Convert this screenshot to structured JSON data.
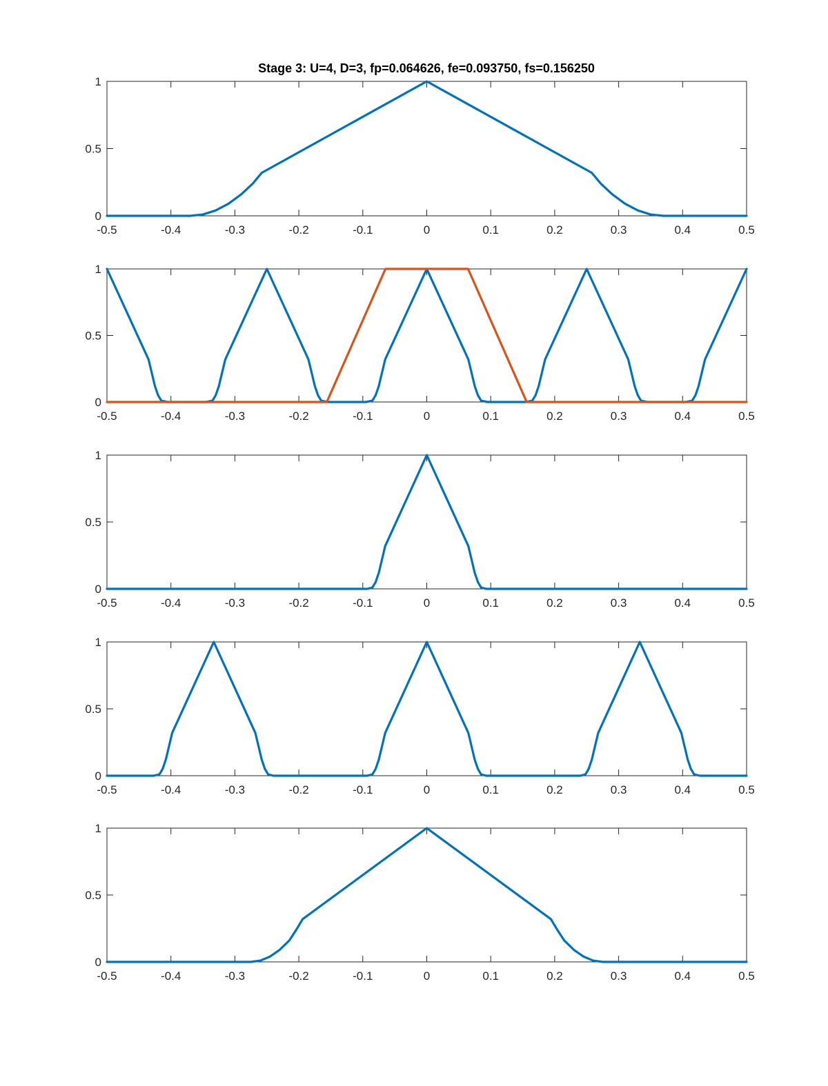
{
  "figure_title": "Stage 3: U=4, D=3, fp=0.064626, fe=0.093750, fs=0.156250",
  "colors": {
    "blue": "#0072BD",
    "orange": "#D95319",
    "axis": "#262626"
  },
  "chart_data": [
    {
      "type": "line",
      "xlim": [
        -0.5,
        0.5
      ],
      "ylim": [
        0,
        1
      ],
      "xticks": [
        -0.5,
        -0.4,
        -0.3,
        -0.2,
        -0.1,
        0,
        0.1,
        0.2,
        0.3,
        0.4,
        0.5
      ],
      "xtick_labels": [
        "-0.5",
        "-0.4",
        "-0.3",
        "-0.2",
        "-0.1",
        "0",
        "0.1",
        "0.2",
        "0.3",
        "0.4",
        "0.5"
      ],
      "yticks": [
        0,
        0.5,
        1
      ],
      "ytick_labels": [
        "0",
        "0.5",
        "1"
      ],
      "grid": false,
      "series": [
        {
          "color": "blue",
          "x": [
            -0.5,
            -0.37,
            -0.35,
            -0.33,
            -0.31,
            -0.29,
            -0.272,
            -0.258,
            0,
            0.258,
            0.272,
            0.29,
            0.31,
            0.33,
            0.35,
            0.37,
            0.5
          ],
          "y": [
            0,
            0,
            0.01,
            0.04,
            0.09,
            0.16,
            0.24,
            0.32,
            1,
            0.32,
            0.24,
            0.16,
            0.09,
            0.04,
            0.01,
            0,
            0
          ]
        }
      ]
    },
    {
      "type": "line",
      "xlim": [
        -0.5,
        0.5
      ],
      "ylim": [
        0,
        1
      ],
      "xticks": [
        -0.5,
        -0.4,
        -0.3,
        -0.2,
        -0.1,
        0,
        0.1,
        0.2,
        0.3,
        0.4,
        0.5
      ],
      "xtick_labels": [
        "-0.5",
        "-0.4",
        "-0.3",
        "-0.2",
        "-0.1",
        "0",
        "0.1",
        "0.2",
        "0.3",
        "0.4",
        "0.5"
      ],
      "yticks": [
        0,
        0.5,
        1
      ],
      "ytick_labels": [
        "0",
        "0.5",
        "1"
      ],
      "grid": false,
      "series": [
        {
          "color": "blue",
          "x": [
            -0.5,
            -0.435,
            -0.43,
            -0.425,
            -0.42,
            -0.415,
            -0.405,
            -0.345,
            -0.335,
            -0.33,
            -0.325,
            -0.32,
            -0.315,
            -0.25,
            -0.185,
            -0.18,
            -0.175,
            -0.17,
            -0.165,
            -0.155,
            -0.095,
            -0.085,
            -0.08,
            -0.075,
            -0.07,
            -0.065,
            0,
            0.065,
            0.07,
            0.075,
            0.08,
            0.085,
            0.095,
            0.155,
            0.165,
            0.17,
            0.175,
            0.18,
            0.185,
            0.25,
            0.315,
            0.32,
            0.325,
            0.33,
            0.335,
            0.345,
            0.405,
            0.415,
            0.42,
            0.425,
            0.43,
            0.435,
            0.5
          ],
          "y": [
            1,
            0.32,
            0.22,
            0.12,
            0.05,
            0.01,
            0,
            0,
            0.01,
            0.05,
            0.12,
            0.22,
            0.32,
            1,
            0.32,
            0.22,
            0.12,
            0.05,
            0.01,
            0,
            0,
            0.01,
            0.05,
            0.12,
            0.22,
            0.32,
            1,
            0.32,
            0.22,
            0.12,
            0.05,
            0.01,
            0,
            0,
            0.01,
            0.05,
            0.12,
            0.22,
            0.32,
            1,
            0.32,
            0.22,
            0.12,
            0.05,
            0.01,
            0,
            0,
            0.01,
            0.05,
            0.12,
            0.22,
            0.32,
            1
          ]
        },
        {
          "color": "orange",
          "x": [
            -0.5,
            -0.15625,
            -0.064626,
            0.064626,
            0.15625,
            0.5
          ],
          "y": [
            0,
            0,
            1,
            1,
            0,
            0
          ]
        }
      ]
    },
    {
      "type": "line",
      "xlim": [
        -0.5,
        0.5
      ],
      "ylim": [
        0,
        1
      ],
      "xticks": [
        -0.5,
        -0.4,
        -0.3,
        -0.2,
        -0.1,
        0,
        0.1,
        0.2,
        0.3,
        0.4,
        0.5
      ],
      "xtick_labels": [
        "-0.5",
        "-0.4",
        "-0.3",
        "-0.2",
        "-0.1",
        "0",
        "0.1",
        "0.2",
        "0.3",
        "0.4",
        "0.5"
      ],
      "yticks": [
        0,
        0.5,
        1
      ],
      "ytick_labels": [
        "0",
        "0.5",
        "1"
      ],
      "grid": false,
      "series": [
        {
          "color": "blue",
          "x": [
            -0.5,
            -0.093,
            -0.085,
            -0.08,
            -0.075,
            -0.07,
            -0.065,
            0,
            0.065,
            0.07,
            0.075,
            0.08,
            0.085,
            0.093,
            0.5
          ],
          "y": [
            0,
            0,
            0.01,
            0.05,
            0.12,
            0.22,
            0.32,
            1,
            0.32,
            0.22,
            0.12,
            0.05,
            0.01,
            0,
            0
          ]
        }
      ]
    },
    {
      "type": "line",
      "xlim": [
        -0.5,
        0.5
      ],
      "ylim": [
        0,
        1
      ],
      "xticks": [
        -0.5,
        -0.4,
        -0.3,
        -0.2,
        -0.1,
        0,
        0.1,
        0.2,
        0.3,
        0.4,
        0.5
      ],
      "xtick_labels": [
        "-0.5",
        "-0.4",
        "-0.3",
        "-0.2",
        "-0.1",
        "0",
        "0.1",
        "0.2",
        "0.3",
        "0.4",
        "0.5"
      ],
      "yticks": [
        0,
        0.5,
        1
      ],
      "ytick_labels": [
        "0",
        "0.5",
        "1"
      ],
      "grid": false,
      "series": [
        {
          "color": "blue",
          "x": [
            -0.5,
            -0.427,
            -0.418,
            -0.413,
            -0.408,
            -0.403,
            -0.398,
            -0.333,
            -0.268,
            -0.263,
            -0.258,
            -0.253,
            -0.248,
            -0.24,
            -0.093,
            -0.085,
            -0.08,
            -0.075,
            -0.07,
            -0.065,
            0,
            0.065,
            0.07,
            0.075,
            0.08,
            0.085,
            0.093,
            0.24,
            0.248,
            0.253,
            0.258,
            0.263,
            0.268,
            0.333,
            0.398,
            0.403,
            0.408,
            0.413,
            0.418,
            0.427,
            0.5
          ],
          "y": [
            0,
            0,
            0.01,
            0.05,
            0.12,
            0.22,
            0.32,
            1,
            0.32,
            0.22,
            0.12,
            0.05,
            0.01,
            0,
            0,
            0.01,
            0.05,
            0.12,
            0.22,
            0.32,
            1,
            0.32,
            0.22,
            0.12,
            0.05,
            0.01,
            0,
            0,
            0.01,
            0.05,
            0.12,
            0.22,
            0.32,
            1,
            0.32,
            0.22,
            0.12,
            0.05,
            0.01,
            0,
            0
          ]
        }
      ]
    },
    {
      "type": "line",
      "xlim": [
        -0.5,
        0.5
      ],
      "ylim": [
        0,
        1
      ],
      "xticks": [
        -0.5,
        -0.4,
        -0.3,
        -0.2,
        -0.1,
        0,
        0.1,
        0.2,
        0.3,
        0.4,
        0.5
      ],
      "xtick_labels": [
        "-0.5",
        "-0.4",
        "-0.3",
        "-0.2",
        "-0.1",
        "0",
        "0.1",
        "0.2",
        "0.3",
        "0.4",
        "0.5"
      ],
      "yticks": [
        0,
        0.5,
        1
      ],
      "ytick_labels": [
        "0",
        "0.5",
        "1"
      ],
      "grid": false,
      "series": [
        {
          "color": "blue",
          "x": [
            -0.5,
            -0.275,
            -0.26,
            -0.245,
            -0.23,
            -0.215,
            -0.204,
            -0.194,
            0,
            0.194,
            0.204,
            0.215,
            0.23,
            0.245,
            0.26,
            0.275,
            0.5
          ],
          "y": [
            0,
            0,
            0.01,
            0.04,
            0.09,
            0.16,
            0.24,
            0.32,
            1,
            0.32,
            0.24,
            0.16,
            0.09,
            0.04,
            0.01,
            0,
            0
          ]
        }
      ]
    }
  ]
}
